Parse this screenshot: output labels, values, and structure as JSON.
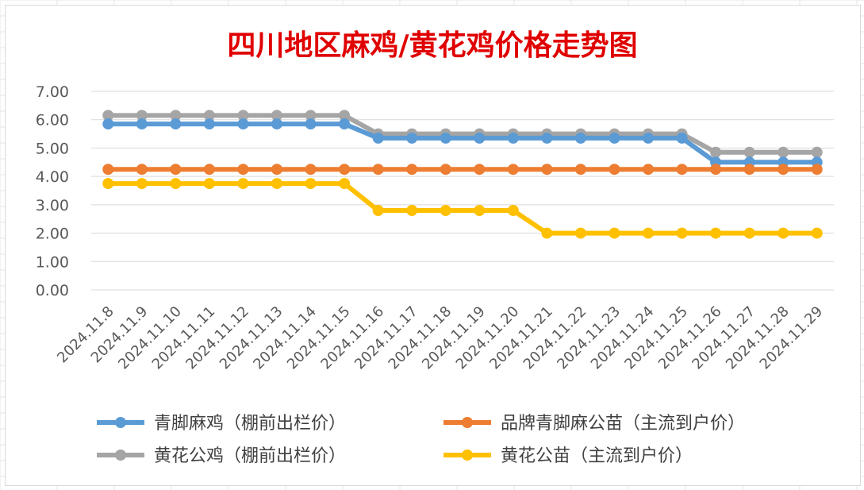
{
  "chart_data": {
    "type": "line",
    "title": "四川地区麻鸡/黄花鸡价格走势图",
    "categories": [
      "2024.11.8",
      "2024.11.9",
      "2024.11.10",
      "2024.11.11",
      "2024.11.12",
      "2024.11.13",
      "2024.11.14",
      "2024.11.15",
      "2024.11.16",
      "2024.11.17",
      "2024.11.18",
      "2024.11.19",
      "2024.11.20",
      "2024.11.21",
      "2024.11.22",
      "2024.11.23",
      "2024.11.24",
      "2024.11.25",
      "2024.11.26",
      "2024.11.27",
      "2024.11.28",
      "2024.11.29"
    ],
    "y_ticks": [
      "0.00",
      "1.00",
      "2.00",
      "3.00",
      "4.00",
      "5.00",
      "6.00",
      "7.00"
    ],
    "ylim": [
      0,
      7
    ],
    "grid": true,
    "legend_position": "bottom",
    "title_color": "#e00000",
    "series": [
      {
        "name": "青脚麻鸡（棚前出栏价）",
        "color": "#5b9bd5",
        "values": [
          5.85,
          5.85,
          5.85,
          5.85,
          5.85,
          5.85,
          5.85,
          5.85,
          5.35,
          5.35,
          5.35,
          5.35,
          5.35,
          5.35,
          5.35,
          5.35,
          5.35,
          5.35,
          4.5,
          4.5,
          4.5,
          4.5
        ]
      },
      {
        "name": "品牌青脚麻公苗（主流到户价）",
        "color": "#ed7d31",
        "values": [
          4.25,
          4.25,
          4.25,
          4.25,
          4.25,
          4.25,
          4.25,
          4.25,
          4.25,
          4.25,
          4.25,
          4.25,
          4.25,
          4.25,
          4.25,
          4.25,
          4.25,
          4.25,
          4.25,
          4.25,
          4.25,
          4.25
        ]
      },
      {
        "name": "黄花公鸡（棚前出栏价）",
        "color": "#a5a5a5",
        "values": [
          6.15,
          6.15,
          6.15,
          6.15,
          6.15,
          6.15,
          6.15,
          6.15,
          5.5,
          5.5,
          5.5,
          5.5,
          5.5,
          5.5,
          5.5,
          5.5,
          5.5,
          5.5,
          4.85,
          4.85,
          4.85,
          4.85
        ]
      },
      {
        "name": "黄花公苗（主流到户价）",
        "color": "#ffc000",
        "values": [
          3.75,
          3.75,
          3.75,
          3.75,
          3.75,
          3.75,
          3.75,
          3.75,
          2.8,
          2.8,
          2.8,
          2.8,
          2.8,
          2.0,
          2.0,
          2.0,
          2.0,
          2.0,
          2.0,
          2.0,
          2.0,
          2.0
        ]
      }
    ]
  }
}
